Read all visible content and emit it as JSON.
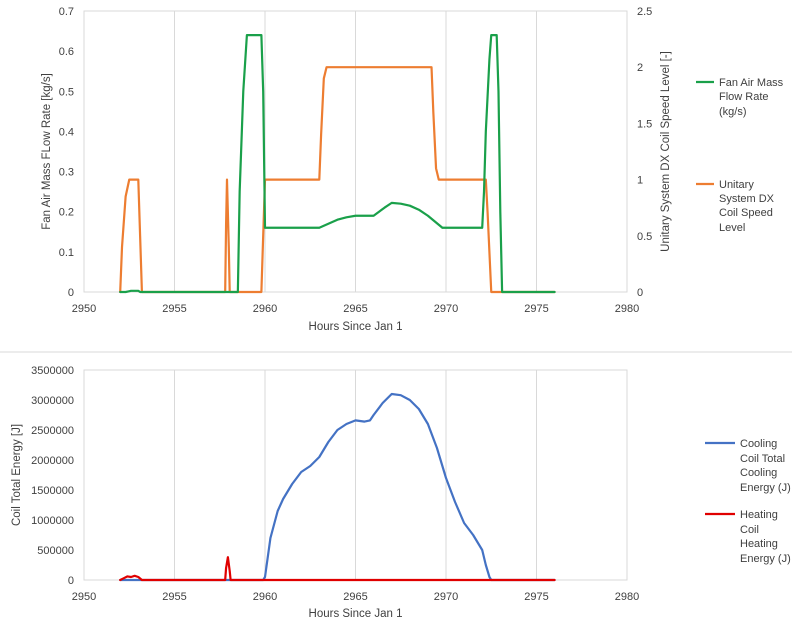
{
  "chart_data": [
    {
      "type": "line",
      "title": "",
      "xlabel": "Hours Since Jan 1",
      "ylabel": "Fan Air Mass FLow Rate [kg/s]",
      "y2label": "Unitary  System DX Coil Speed Level [-]",
      "xlim": [
        2950,
        2980
      ],
      "xticks": [
        "2950",
        "2955",
        "2960",
        "2965",
        "2970",
        "2975",
        "2980"
      ],
      "ylim": [
        0,
        0.7
      ],
      "yticks": [
        "0",
        "0.1",
        "0.2",
        "0.3",
        "0.4",
        "0.5",
        "0.6",
        "0.7"
      ],
      "y2lim": [
        0,
        2.5
      ],
      "y2ticks": [
        "0",
        "0.5",
        "1",
        "1.5",
        "2",
        "2.5"
      ],
      "grid": true,
      "legend_position": "right",
      "series": [
        {
          "name": "Fan Air Mass Flow Rate (kg/s)",
          "legend_lines": [
            "Fan Air Mass",
            "Flow Rate",
            "(kg/s)"
          ],
          "axis": "left",
          "color": "#1aa04a",
          "x": [
            2952,
            2952.3,
            2952.6,
            2953,
            2953.1,
            2953.2,
            2958.5,
            2958.6,
            2958.8,
            2959,
            2959.8,
            2959.9,
            2960,
            2963,
            2963.5,
            2964,
            2964.5,
            2965,
            2965.5,
            2966,
            2966.3,
            2966.6,
            2967,
            2967.5,
            2968,
            2968.5,
            2969,
            2969.4,
            2969.8,
            2970,
            2972,
            2972.1,
            2972.2,
            2972.4,
            2972.5,
            2972.8,
            2972.9,
            2973,
            2973.1,
            2976
          ],
          "y": [
            0,
            0,
            0.003,
            0.003,
            0,
            0,
            0,
            0.25,
            0.5,
            0.64,
            0.64,
            0.5,
            0.16,
            0.16,
            0.17,
            0.18,
            0.186,
            0.19,
            0.19,
            0.19,
            0.2,
            0.21,
            0.222,
            0.22,
            0.215,
            0.205,
            0.19,
            0.175,
            0.16,
            0.16,
            0.16,
            0.25,
            0.4,
            0.58,
            0.64,
            0.64,
            0.5,
            0.2,
            0,
            0
          ]
        },
        {
          "name": "Unitary System DX Coil Speed Level",
          "legend_lines": [
            "Unitary",
            "System DX",
            "Coil Speed",
            "Level"
          ],
          "axis": "right",
          "color": "#ed7d31",
          "x": [
            2952,
            2952.1,
            2952.3,
            2952.5,
            2953,
            2953.1,
            2953.2,
            2957.8,
            2957.85,
            2957.9,
            2958.0,
            2958.05,
            2959.8,
            2959.9,
            2960,
            2963,
            2963.1,
            2963.25,
            2963.4,
            2969.2,
            2969.3,
            2969.45,
            2969.6,
            2972.2,
            2972.3,
            2972.5,
            2976
          ],
          "y": [
            0,
            0.4,
            0.85,
            1,
            1,
            0.5,
            0,
            0,
            0.6,
            1,
            0.4,
            0,
            0,
            0.5,
            1,
            1,
            1.4,
            1.9,
            2,
            2,
            1.6,
            1.1,
            1,
            1,
            0.7,
            0,
            0
          ]
        }
      ]
    },
    {
      "type": "line",
      "title": "",
      "xlabel": "Hours Since Jan 1",
      "ylabel": "Coil Total Energy [J]",
      "xlim": [
        2950,
        2980
      ],
      "xticks": [
        "2950",
        "2955",
        "2960",
        "2965",
        "2970",
        "2975",
        "2980"
      ],
      "ylim": [
        0,
        3500000
      ],
      "yticks": [
        "0",
        "500000",
        "1000000",
        "1500000",
        "2000000",
        "2500000",
        "3000000",
        "3500000"
      ],
      "grid": true,
      "legend_position": "right",
      "series": [
        {
          "name": "Cooling Coil Total Cooling Energy (J)",
          "legend_lines": [
            "Cooling",
            "Coil Total",
            "Cooling",
            "Energy (J)"
          ],
          "color": "#4472c4",
          "x": [
            2952,
            2959.9,
            2960,
            2960.3,
            2960.7,
            2961,
            2961.5,
            2962,
            2962.5,
            2963,
            2963.5,
            2964,
            2964.5,
            2965,
            2965.5,
            2965.8,
            2966,
            2966.5,
            2967,
            2967.5,
            2968,
            2968.5,
            2969,
            2969.5,
            2970,
            2970.5,
            2971,
            2971.5,
            2972,
            2972.2,
            2972.4,
            2972.5,
            2976
          ],
          "y": [
            0,
            0,
            50000,
            700000,
            1150000,
            1350000,
            1600000,
            1800000,
            1900000,
            2050000,
            2300000,
            2500000,
            2600000,
            2660000,
            2640000,
            2660000,
            2750000,
            2950000,
            3100000,
            3080000,
            3000000,
            2850000,
            2600000,
            2200000,
            1700000,
            1300000,
            950000,
            750000,
            500000,
            250000,
            50000,
            0,
            0
          ]
        },
        {
          "name": "Heating Coil Heating Energy (J)",
          "legend_lines": [
            "Heating",
            "Coil",
            "Heating",
            "Energy (J)"
          ],
          "color": "#e00000",
          "x": [
            2952,
            2952.2,
            2952.4,
            2952.6,
            2952.8,
            2953,
            2953.2,
            2957.8,
            2957.85,
            2957.95,
            2958.05,
            2958.1,
            2976
          ],
          "y": [
            0,
            30000,
            60000,
            50000,
            70000,
            50000,
            0,
            0,
            200000,
            380000,
            150000,
            0,
            0
          ]
        }
      ]
    }
  ]
}
